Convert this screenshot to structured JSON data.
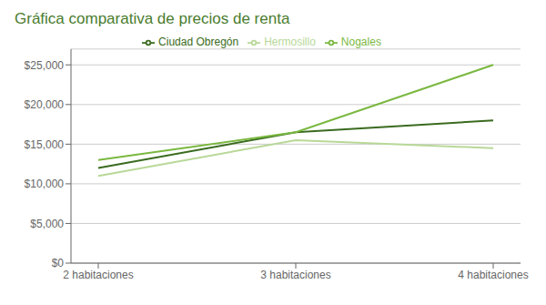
{
  "chart_data": {
    "type": "line",
    "title": "Gráfica comparativa de precios de renta",
    "title_color": "#4a7c2f",
    "categories": [
      "2 habitaciones",
      "3 habitaciones",
      "4 habitaciones"
    ],
    "series": [
      {
        "name": "Ciudad Obregón",
        "color": "#3a6b20",
        "values": [
          12000,
          16500,
          18000
        ]
      },
      {
        "name": "Hermosillo",
        "color": "#b8d898",
        "values": [
          11000,
          15500,
          14500
        ]
      },
      {
        "name": "Nogales",
        "color": "#7ab840",
        "values": [
          13000,
          16500,
          25000
        ]
      }
    ],
    "ylim": [
      0,
      27000
    ],
    "yticks": [
      {
        "value": 0,
        "label": "$0"
      },
      {
        "value": 5000,
        "label": "$5,000"
      },
      {
        "value": 10000,
        "label": "$10,000"
      },
      {
        "value": 15000,
        "label": "$15,000"
      },
      {
        "value": 20000,
        "label": "$20,000"
      },
      {
        "value": 25000,
        "label": "$25,000"
      }
    ],
    "grid": true,
    "legend": "top"
  }
}
